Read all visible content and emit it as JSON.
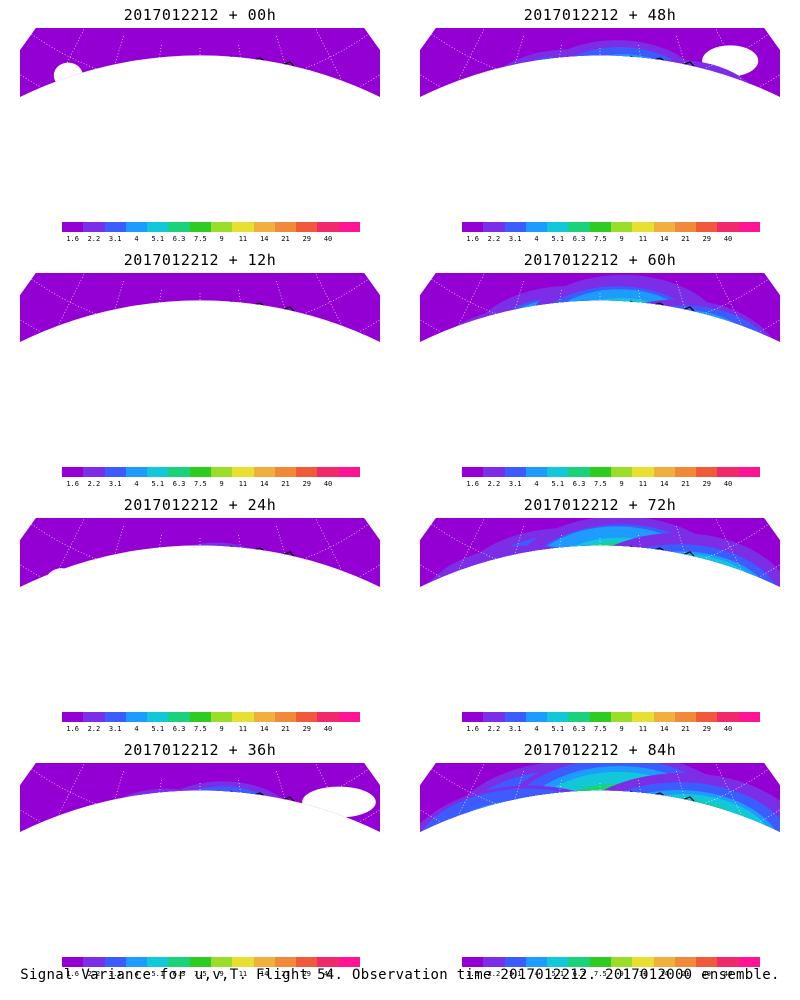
{
  "colors": [
    "#9400d3",
    "#7b2ee6",
    "#3c5cff",
    "#1e9bff",
    "#12c8d8",
    "#19d27a",
    "#2dcc1e",
    "#9bde2a",
    "#e8e030",
    "#f0b040",
    "#f08a3a",
    "#f05a3a",
    "#f02a6a",
    "#ff1493"
  ],
  "ticks": [
    "1.6",
    "2.2",
    "3.1",
    "4",
    "5.1",
    "6.3",
    "7.5",
    "9",
    "11",
    "14",
    "21",
    "29",
    "40"
  ],
  "panels": [
    {
      "title": "2017012212 + 00h",
      "intensity": 0
    },
    {
      "title": "2017012212 + 48h",
      "intensity": 4
    },
    {
      "title": "2017012212 + 12h",
      "intensity": 1
    },
    {
      "title": "2017012212 + 60h",
      "intensity": 5
    },
    {
      "title": "2017012212 + 24h",
      "intensity": 2
    },
    {
      "title": "2017012212 + 72h",
      "intensity": 6
    },
    {
      "title": "2017012212 + 36h",
      "intensity": 3
    },
    {
      "title": "2017012212 + 84h",
      "intensity": 7
    }
  ],
  "caption": "Signal Variance for u,v,T. Flight 54. Observation time 2017012212. 2017012000 ensemble."
}
